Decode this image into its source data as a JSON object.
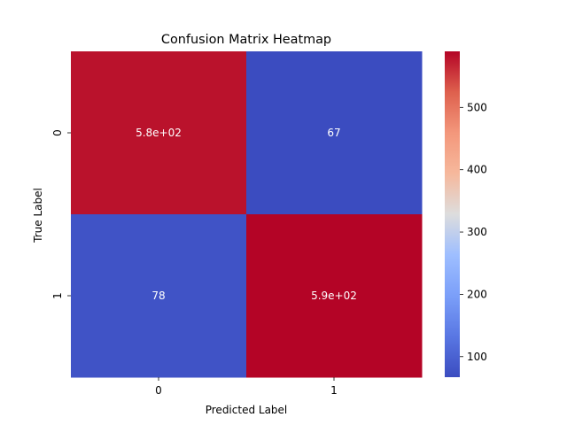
{
  "chart_data": {
    "type": "heatmap",
    "title": "Confusion Matrix Heatmap",
    "xlabel": "Predicted Label",
    "ylabel": "True Label",
    "x_categories": [
      "0",
      "1"
    ],
    "y_categories": [
      "0",
      "1"
    ],
    "values": [
      [
        580,
        67
      ],
      [
        78,
        590
      ]
    ],
    "annotations": [
      [
        "5.8e+02",
        "67"
      ],
      [
        "78",
        "5.9e+02"
      ]
    ],
    "colormap": "coolwarm",
    "color_range": [
      67,
      590
    ],
    "colorbar_ticks": [
      100,
      200,
      300,
      400,
      500
    ],
    "colorbar_tick_labels": [
      "100",
      "200",
      "300",
      "400",
      "500"
    ]
  }
}
